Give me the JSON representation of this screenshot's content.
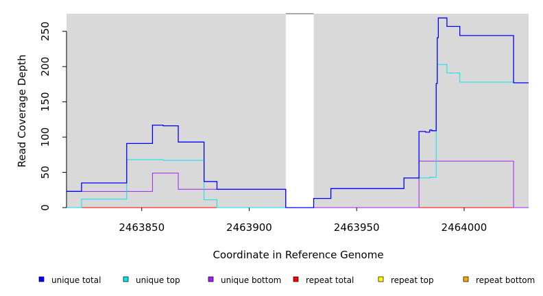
{
  "chart_data": {
    "type": "line",
    "xlabel": "Coordinate in Reference Genome",
    "ylabel": "Read Coverage Depth",
    "xlim": [
      2463815,
      2464030
    ],
    "ylim": [
      0,
      275
    ],
    "x_ticks": [
      2463850,
      2463900,
      2463950,
      2464000
    ],
    "x_tick_labels": [
      "2463850",
      "2463900",
      "2463950",
      "2464000"
    ],
    "y_ticks": [
      0,
      50,
      100,
      150,
      200,
      250
    ],
    "y_tick_labels": [
      "0",
      "50",
      "100",
      "150",
      "200",
      "250"
    ],
    "shaded_regions": [
      [
        2463815,
        2463917
      ],
      [
        2463930,
        2464030
      ]
    ],
    "legend_position": "bottom",
    "series": [
      {
        "name": "unique total",
        "color": "#0000ff",
        "points": [
          [
            2463815,
            23
          ],
          [
            2463822,
            23
          ],
          [
            2463822,
            35
          ],
          [
            2463843,
            35
          ],
          [
            2463843,
            91
          ],
          [
            2463855,
            91
          ],
          [
            2463855,
            117
          ],
          [
            2463860,
            117
          ],
          [
            2463860,
            116
          ],
          [
            2463867,
            116
          ],
          [
            2463867,
            93
          ],
          [
            2463879,
            93
          ],
          [
            2463879,
            37
          ],
          [
            2463885,
            37
          ],
          [
            2463885,
            26
          ],
          [
            2463917,
            26
          ],
          [
            2463917,
            0
          ],
          [
            2463930,
            0
          ],
          [
            2463930,
            13
          ],
          [
            2463938,
            13
          ],
          [
            2463938,
            27
          ],
          [
            2463972,
            27
          ],
          [
            2463972,
            42
          ],
          [
            2463979,
            42
          ],
          [
            2463979,
            108
          ],
          [
            2463982,
            108
          ],
          [
            2463982,
            107
          ],
          [
            2463984,
            107
          ],
          [
            2463984,
            110
          ],
          [
            2463985,
            110
          ],
          [
            2463985,
            109
          ],
          [
            2463987,
            109
          ],
          [
            2463987,
            176
          ],
          [
            2463987.5,
            176
          ],
          [
            2463987.5,
            241
          ],
          [
            2463988,
            241
          ],
          [
            2463988,
            269
          ],
          [
            2463992,
            269
          ],
          [
            2463992,
            257
          ],
          [
            2463998,
            257
          ],
          [
            2463998,
            244
          ],
          [
            2464023,
            244
          ],
          [
            2464023,
            177
          ],
          [
            2464030,
            177
          ]
        ]
      },
      {
        "name": "unique top",
        "color": "#00e5ee",
        "points": [
          [
            2463815,
            0
          ],
          [
            2463822,
            0
          ],
          [
            2463822,
            12
          ],
          [
            2463843,
            12
          ],
          [
            2463843,
            68
          ],
          [
            2463860,
            68
          ],
          [
            2463860,
            67
          ],
          [
            2463879,
            67
          ],
          [
            2463879,
            11
          ],
          [
            2463885,
            11
          ],
          [
            2463885,
            0
          ],
          [
            2463917,
            0
          ],
          [
            2463917,
            0
          ],
          [
            2463930,
            0
          ],
          [
            2463930,
            13
          ],
          [
            2463938,
            13
          ],
          [
            2463938,
            27
          ],
          [
            2463972,
            27
          ],
          [
            2463972,
            42
          ],
          [
            2463984,
            42
          ],
          [
            2463984,
            43
          ],
          [
            2463987,
            43
          ],
          [
            2463987,
            176
          ],
          [
            2463987.5,
            176
          ],
          [
            2463987.5,
            203
          ],
          [
            2463992,
            203
          ],
          [
            2463992,
            191
          ],
          [
            2463998,
            191
          ],
          [
            2463998,
            178
          ],
          [
            2464023,
            178
          ],
          [
            2464023,
            177
          ],
          [
            2464030,
            177
          ]
        ]
      },
      {
        "name": "unique bottom",
        "color": "#a020f0",
        "points": [
          [
            2463815,
            23
          ],
          [
            2463843,
            23
          ],
          [
            2463843,
            23
          ],
          [
            2463855,
            23
          ],
          [
            2463855,
            49
          ],
          [
            2463867,
            49
          ],
          [
            2463867,
            26
          ],
          [
            2463917,
            26
          ],
          [
            2463917,
            0
          ],
          [
            2463979,
            0
          ],
          [
            2463979,
            66
          ],
          [
            2464023,
            66
          ],
          [
            2464023,
            0
          ],
          [
            2464030,
            0
          ]
        ]
      },
      {
        "name": "repeat total",
        "color": "#ff0000",
        "points": [
          [
            2463815,
            0
          ],
          [
            2464030,
            0
          ]
        ]
      },
      {
        "name": "repeat top",
        "color": "#ffff00",
        "points": [
          [
            2463815,
            0
          ],
          [
            2464030,
            0
          ]
        ]
      },
      {
        "name": "repeat bottom",
        "color": "#ffa500",
        "points": [
          [
            2463815,
            0
          ],
          [
            2464030,
            0
          ]
        ]
      }
    ]
  }
}
